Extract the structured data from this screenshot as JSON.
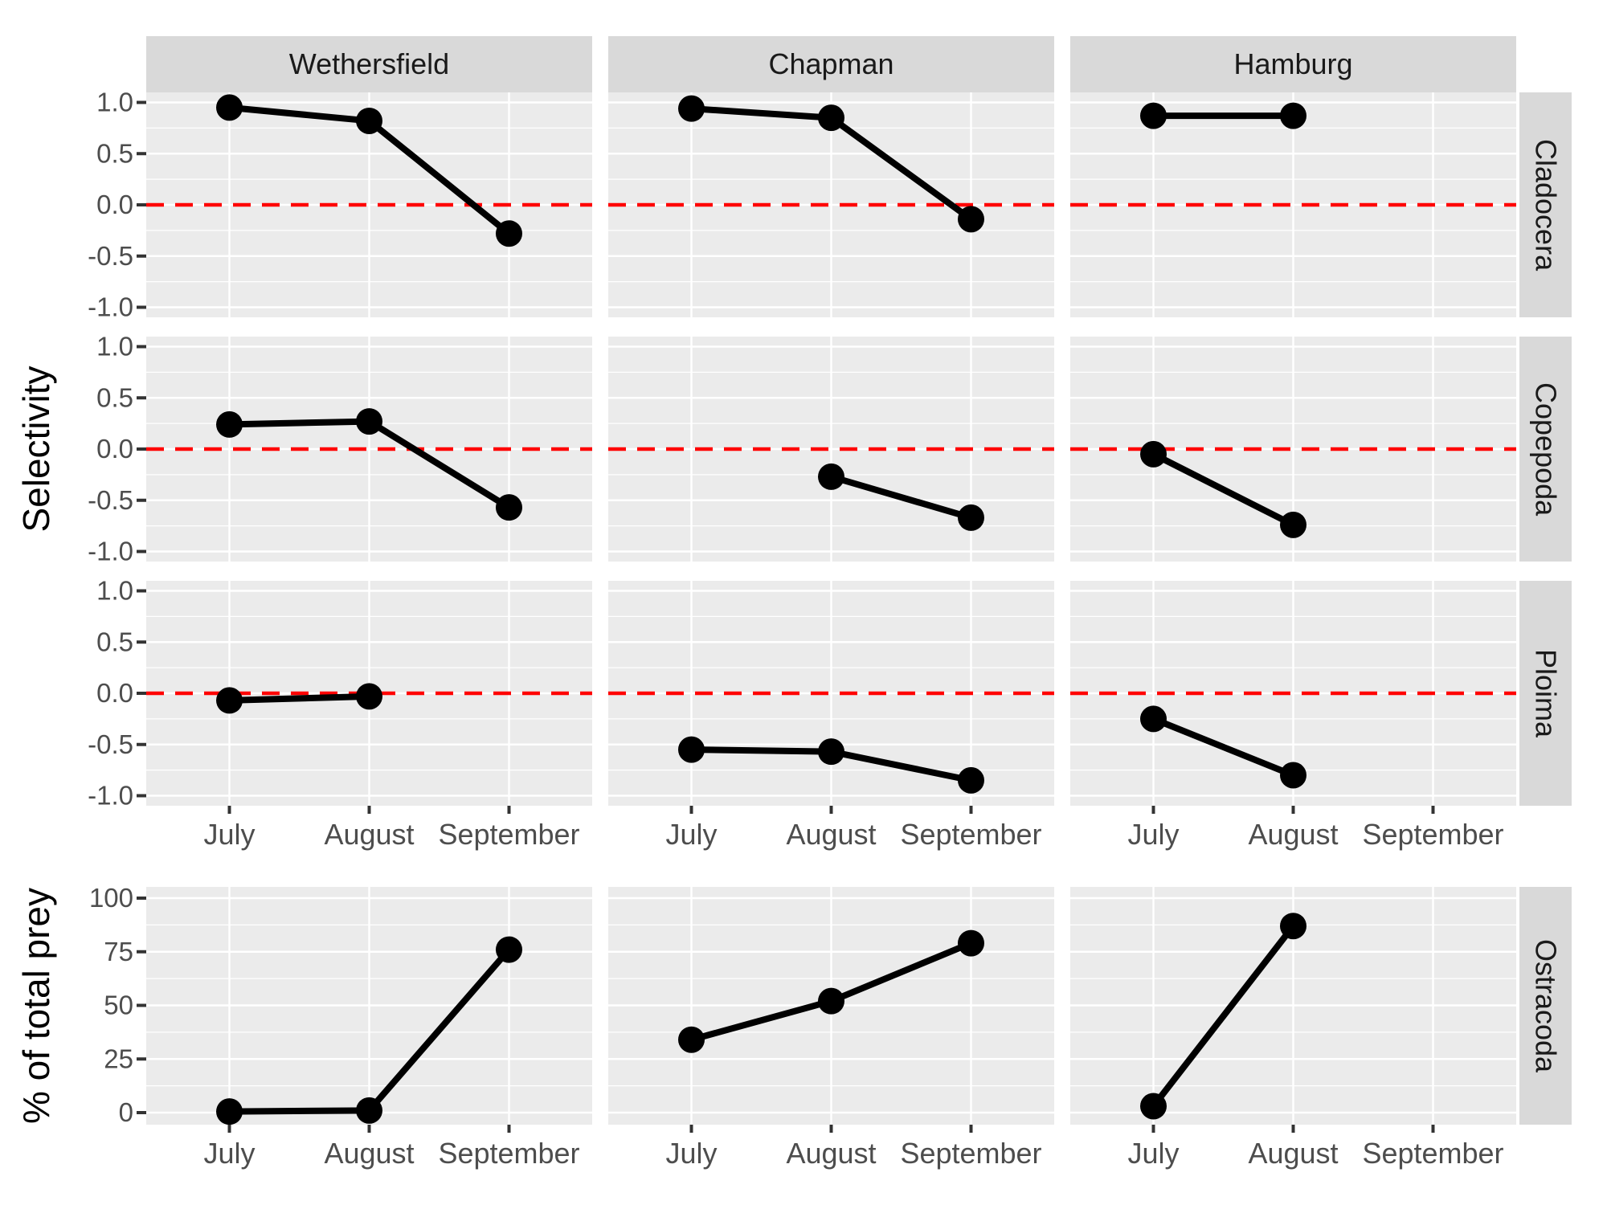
{
  "colors": {
    "panel_bg": "#EBEBEB",
    "strip_bg": "#D9D9D9",
    "grid": "#FFFFFF",
    "reference_red": "#FF0000",
    "point": "#000000",
    "axis_text": "#4D4D4D",
    "strip_text": "#1A1A1A",
    "tick": "#333333"
  },
  "chart_data": [
    {
      "type": "line",
      "block": "selectivity",
      "ylabel": "Selectivity",
      "xlabel": "",
      "x_categories": [
        "July",
        "August",
        "September"
      ],
      "col_facets": [
        "Wethersfield",
        "Chapman",
        "Hamburg"
      ],
      "row_facets": [
        "Cladocera",
        "Copepoda",
        "Ploima"
      ],
      "ylim": [
        -1.1,
        1.1
      ],
      "yticks": [
        1.0,
        0.5,
        0.0,
        -0.5,
        -1.0
      ],
      "ytick_labels": [
        "1.0",
        "0.5",
        "0.0",
        "-0.5",
        "-1.0"
      ],
      "yticks_minor": [
        0.75,
        0.25,
        -0.25,
        -0.75
      ],
      "grid": true,
      "legend": "none",
      "reference_line": {
        "y": 0,
        "style": "dashed",
        "color": "#FF0000"
      },
      "series": {
        "Cladocera": {
          "Wethersfield": [
            {
              "month": "July",
              "value": 0.95
            },
            {
              "month": "August",
              "value": 0.82
            },
            {
              "month": "September",
              "value": -0.28
            }
          ],
          "Chapman": [
            {
              "month": "July",
              "value": 0.94
            },
            {
              "month": "August",
              "value": 0.85
            },
            {
              "month": "September",
              "value": -0.14
            }
          ],
          "Hamburg": [
            {
              "month": "July",
              "value": 0.87
            },
            {
              "month": "August",
              "value": 0.87
            }
          ]
        },
        "Copepoda": {
          "Wethersfield": [
            {
              "month": "July",
              "value": 0.24
            },
            {
              "month": "August",
              "value": 0.27
            },
            {
              "month": "September",
              "value": -0.57
            }
          ],
          "Chapman": [
            {
              "month": "August",
              "value": -0.27
            },
            {
              "month": "September",
              "value": -0.67
            }
          ],
          "Hamburg": [
            {
              "month": "July",
              "value": -0.05
            },
            {
              "month": "August",
              "value": -0.74
            }
          ]
        },
        "Ploima": {
          "Wethersfield": [
            {
              "month": "July",
              "value": -0.07
            },
            {
              "month": "August",
              "value": -0.03
            }
          ],
          "Chapman": [
            {
              "month": "July",
              "value": -0.55
            },
            {
              "month": "August",
              "value": -0.57
            },
            {
              "month": "September",
              "value": -0.85
            }
          ],
          "Hamburg": [
            {
              "month": "July",
              "value": -0.25
            },
            {
              "month": "August",
              "value": -0.8
            }
          ]
        }
      }
    },
    {
      "type": "line",
      "block": "percent_of_total_prey",
      "ylabel": "% of total prey",
      "xlabel": "",
      "x_categories": [
        "July",
        "August",
        "September"
      ],
      "col_facets": [
        "Wethersfield",
        "Chapman",
        "Hamburg"
      ],
      "row_facets": [
        "Ostracoda"
      ],
      "ylim": [
        -5,
        105
      ],
      "yticks": [
        100,
        75,
        50,
        25,
        0
      ],
      "ytick_labels": [
        "100",
        "75",
        "50",
        "25",
        "0"
      ],
      "yticks_minor": [
        87.5,
        62.5,
        37.5,
        12.5
      ],
      "grid": true,
      "legend": "none",
      "series": {
        "Ostracoda": {
          "Wethersfield": [
            {
              "month": "July",
              "value": 0.5
            },
            {
              "month": "August",
              "value": 1
            },
            {
              "month": "September",
              "value": 76
            }
          ],
          "Chapman": [
            {
              "month": "July",
              "value": 34
            },
            {
              "month": "August",
              "value": 52
            },
            {
              "month": "September",
              "value": 79
            }
          ],
          "Hamburg": [
            {
              "month": "July",
              "value": 3
            },
            {
              "month": "August",
              "value": 87
            }
          ]
        }
      }
    }
  ]
}
